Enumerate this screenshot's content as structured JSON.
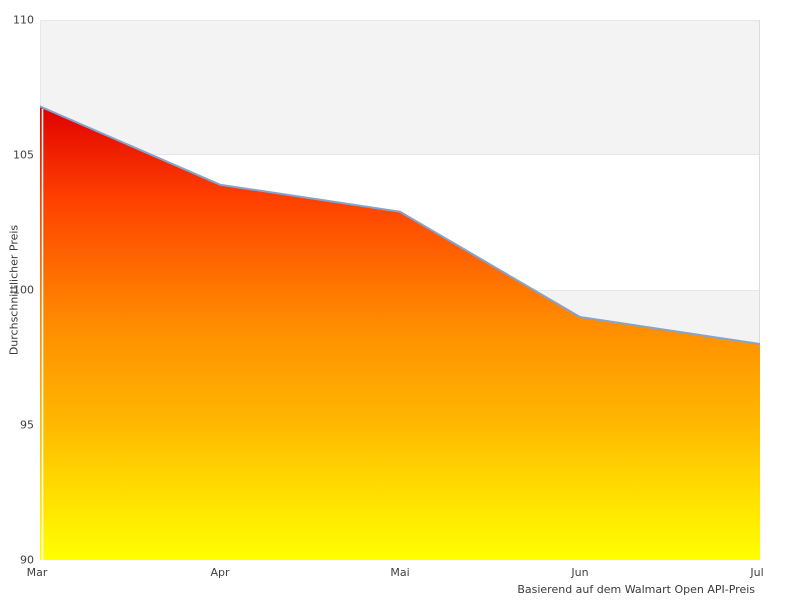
{
  "chart_data": {
    "type": "area",
    "categories": [
      "Mar",
      "Apr",
      "Mai",
      "Jun",
      "Jul"
    ],
    "values": [
      106.8,
      103.9,
      102.9,
      99.0,
      98.0
    ],
    "title": "",
    "xlabel": "Basierend auf dem Walmart Open API-Preis",
    "ylabel": "Durchschnittlicher Preis",
    "ylim": [
      90,
      110
    ],
    "yticks": [
      110,
      105,
      100,
      95,
      90
    ],
    "grid": "alternating horizontal bands, no tick marks, no legend",
    "legend": "none",
    "colors": {
      "line": "#85a4cc",
      "area_gradient_top": "#df0000",
      "area_gradient_mid": "#ff8c00",
      "area_gradient_bottom": "#ffff00",
      "band_gray": "#f3f3f3",
      "band_border": "#e7e7e7",
      "plot_right_border": "#dcdcdc",
      "tick_text": "#3f3f3f",
      "background": "#ffffff"
    }
  }
}
